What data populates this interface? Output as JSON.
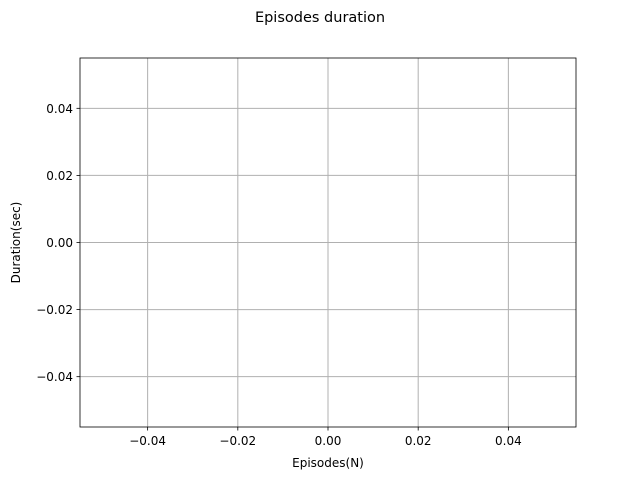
{
  "chart_data": {
    "type": "line",
    "title": "Episodes duration",
    "xlabel": "Episodes(N)",
    "ylabel": "Duration(sec)",
    "xlim": [
      -0.055,
      0.055
    ],
    "ylim": [
      -0.055,
      0.055
    ],
    "x_ticks": [
      -0.04,
      -0.02,
      0.0,
      0.02,
      0.04
    ],
    "y_ticks": [
      -0.04,
      -0.02,
      0.0,
      0.02,
      0.04
    ],
    "x_tick_labels": [
      "−0.04",
      "−0.02",
      "0.00",
      "0.02",
      "0.04"
    ],
    "y_tick_labels": [
      "−0.04",
      "−0.02",
      "0.00",
      "0.02",
      "0.04"
    ],
    "grid": true,
    "series": [
      {
        "x": [],
        "values": []
      }
    ]
  },
  "colors": {
    "background": "#ffffff",
    "grid": "#b0b0b0",
    "axes": "#000000"
  }
}
